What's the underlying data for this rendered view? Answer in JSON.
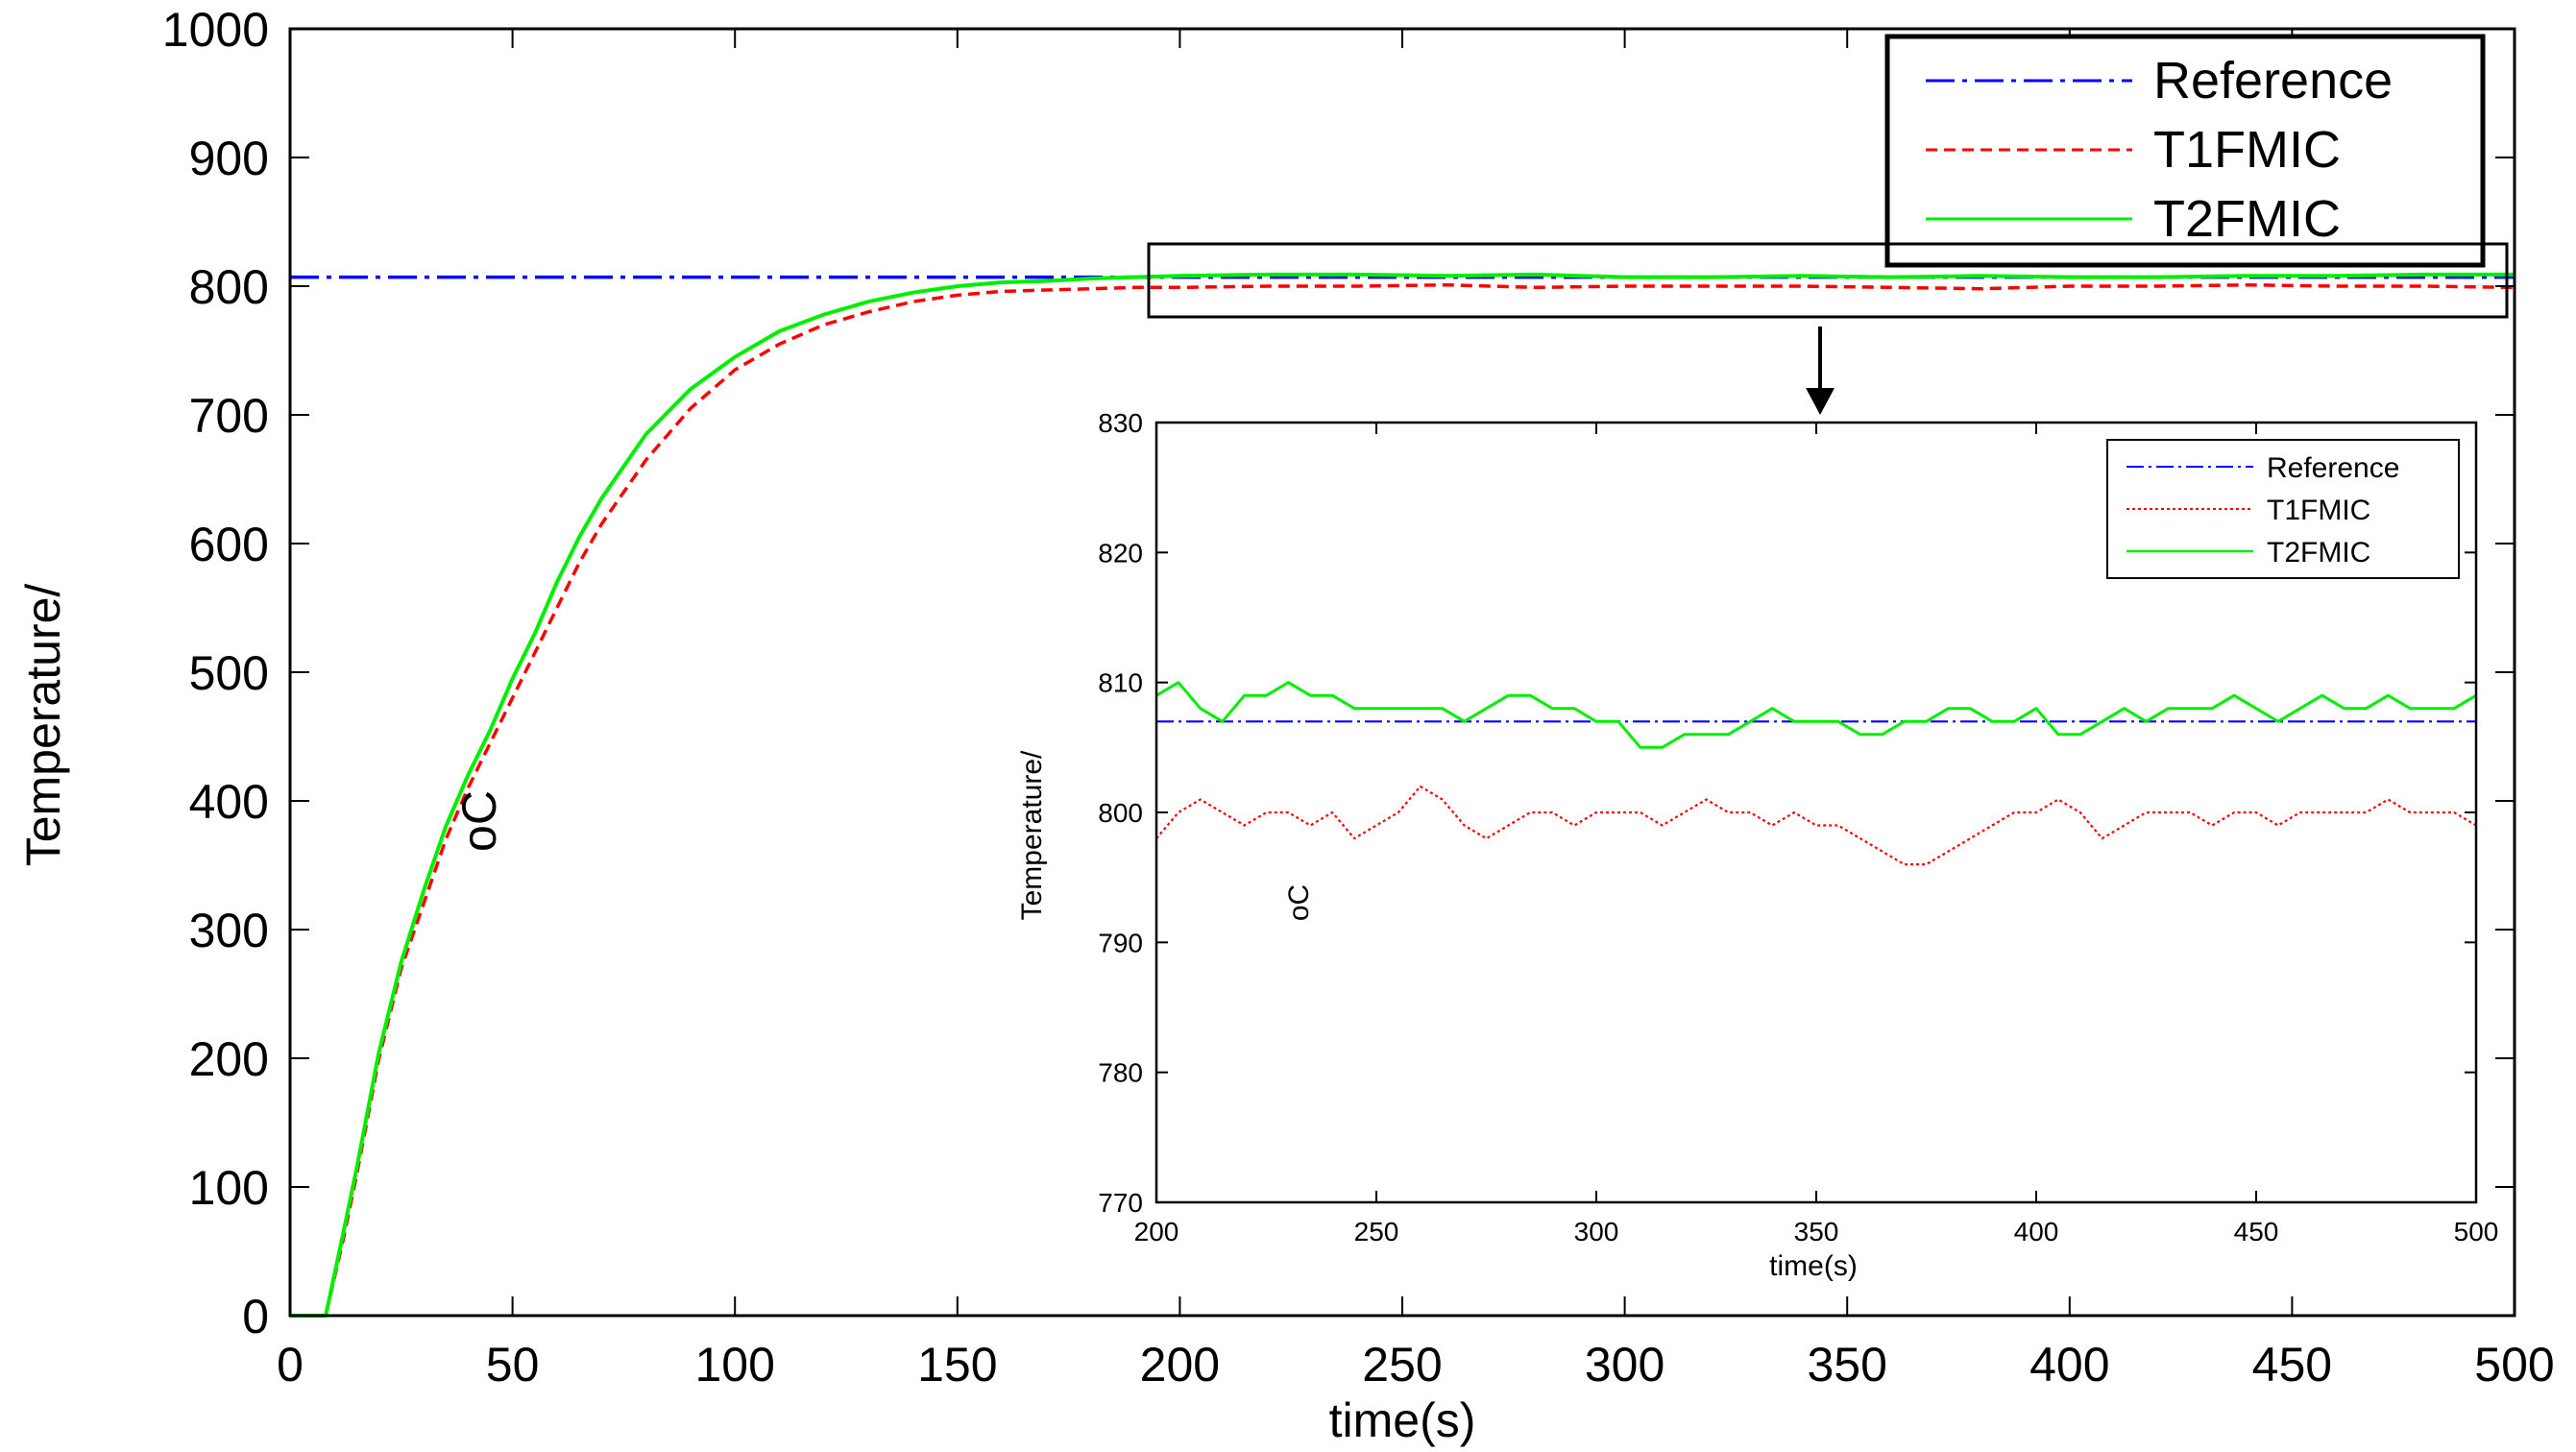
{
  "chart_data": [
    {
      "type": "line",
      "id": "main",
      "xlabel": "time(s)",
      "ylabel": "Temperature/",
      "ylabel_unit": "oC",
      "xlim": [
        0,
        500
      ],
      "ylim": [
        0,
        1000
      ],
      "xticks": [
        0,
        50,
        100,
        150,
        200,
        250,
        300,
        350,
        400,
        450,
        500
      ],
      "yticks": [
        0,
        100,
        200,
        300,
        400,
        500,
        600,
        700,
        800,
        900,
        1000
      ],
      "legend": [
        "Reference",
        "T1FMIC",
        "T2FMIC"
      ],
      "legend_position": "top-right",
      "series": [
        {
          "name": "Reference",
          "color": "#0000ff",
          "style": "dash-dot",
          "x": [
            0,
            500
          ],
          "y": [
            807,
            807
          ]
        },
        {
          "name": "T1FMIC",
          "color": "#ff0000",
          "style": "dashed",
          "x": [
            0,
            8,
            12,
            15,
            20,
            25,
            30,
            35,
            40,
            45,
            50,
            55,
            60,
            65,
            70,
            75,
            80,
            90,
            100,
            110,
            120,
            130,
            140,
            150,
            160,
            170,
            180,
            190,
            200,
            220,
            240,
            260,
            280,
            300,
            320,
            340,
            360,
            380,
            400,
            420,
            440,
            460,
            480,
            500
          ],
          "y": [
            0,
            0,
            60,
            110,
            200,
            270,
            320,
            370,
            410,
            445,
            480,
            515,
            550,
            585,
            615,
            640,
            665,
            705,
            735,
            755,
            770,
            780,
            788,
            793,
            796,
            797,
            798,
            799,
            799,
            800,
            800,
            801,
            799,
            800,
            800,
            800,
            799,
            798,
            800,
            800,
            801,
            800,
            800,
            799
          ]
        },
        {
          "name": "T2FMIC",
          "color": "#00ee00",
          "style": "solid",
          "x": [
            0,
            8,
            12,
            15,
            20,
            25,
            30,
            35,
            40,
            45,
            50,
            55,
            60,
            65,
            70,
            75,
            80,
            90,
            100,
            110,
            120,
            130,
            140,
            150,
            160,
            170,
            180,
            190,
            200,
            220,
            240,
            260,
            280,
            300,
            320,
            340,
            360,
            380,
            400,
            420,
            440,
            460,
            480,
            500
          ],
          "y": [
            0,
            0,
            65,
            115,
            205,
            275,
            330,
            380,
            420,
            455,
            495,
            530,
            570,
            605,
            635,
            660,
            685,
            720,
            745,
            765,
            778,
            788,
            795,
            800,
            803,
            804,
            806,
            807,
            808,
            809,
            809,
            808,
            809,
            807,
            807,
            808,
            807,
            808,
            807,
            807,
            808,
            808,
            809,
            809
          ]
        }
      ]
    },
    {
      "type": "line",
      "id": "inset",
      "xlabel": "time(s)",
      "ylabel": "Temperature/",
      "ylabel_unit": "oC",
      "xlim": [
        200,
        500
      ],
      "ylim": [
        770,
        830
      ],
      "xticks": [
        200,
        250,
        300,
        350,
        400,
        450,
        500
      ],
      "yticks": [
        770,
        780,
        790,
        800,
        810,
        820,
        830
      ],
      "legend": [
        "Reference",
        "T1FMIC",
        "T2FMIC"
      ],
      "legend_position": "top-right",
      "series": [
        {
          "name": "Reference",
          "color": "#0000ff",
          "style": "dash-dot",
          "x": [
            200,
            500
          ],
          "y": [
            807,
            807
          ]
        },
        {
          "name": "T1FMIC",
          "color": "#ff0000",
          "style": "dotted",
          "x": [
            200,
            205,
            210,
            215,
            220,
            225,
            230,
            235,
            240,
            245,
            250,
            255,
            260,
            265,
            270,
            275,
            280,
            285,
            290,
            295,
            300,
            305,
            310,
            315,
            320,
            325,
            330,
            335,
            340,
            345,
            350,
            355,
            360,
            365,
            370,
            375,
            380,
            385,
            390,
            395,
            400,
            405,
            410,
            415,
            420,
            425,
            430,
            435,
            440,
            445,
            450,
            455,
            460,
            465,
            470,
            475,
            480,
            485,
            490,
            495,
            500
          ],
          "y": [
            798,
            800,
            801,
            800,
            799,
            800,
            800,
            799,
            800,
            798,
            799,
            800,
            802,
            801,
            799,
            798,
            799,
            800,
            800,
            799,
            800,
            800,
            800,
            799,
            800,
            801,
            800,
            800,
            799,
            800,
            799,
            799,
            798,
            797,
            796,
            796,
            797,
            798,
            799,
            800,
            800,
            801,
            800,
            798,
            799,
            800,
            800,
            800,
            799,
            800,
            800,
            799,
            800,
            800,
            800,
            800,
            801,
            800,
            800,
            800,
            799
          ]
        },
        {
          "name": "T2FMIC",
          "color": "#00ee00",
          "style": "solid",
          "x": [
            200,
            205,
            210,
            215,
            220,
            225,
            230,
            235,
            240,
            245,
            250,
            255,
            260,
            265,
            270,
            275,
            280,
            285,
            290,
            295,
            300,
            305,
            310,
            315,
            320,
            325,
            330,
            335,
            340,
            345,
            350,
            355,
            360,
            365,
            370,
            375,
            380,
            385,
            390,
            395,
            400,
            405,
            410,
            415,
            420,
            425,
            430,
            435,
            440,
            445,
            450,
            455,
            460,
            465,
            470,
            475,
            480,
            485,
            490,
            495,
            500
          ],
          "y": [
            809,
            810,
            808,
            807,
            809,
            809,
            810,
            809,
            809,
            808,
            808,
            808,
            808,
            808,
            807,
            808,
            809,
            809,
            808,
            808,
            807,
            807,
            805,
            805,
            806,
            806,
            806,
            807,
            808,
            807,
            807,
            807,
            806,
            806,
            807,
            807,
            808,
            808,
            807,
            807,
            808,
            806,
            806,
            807,
            808,
            807,
            808,
            808,
            808,
            809,
            808,
            807,
            808,
            809,
            808,
            808,
            809,
            808,
            808,
            808,
            809
          ]
        }
      ]
    }
  ]
}
